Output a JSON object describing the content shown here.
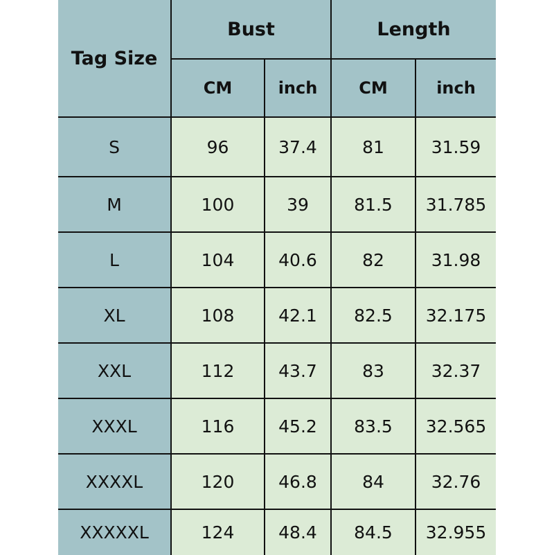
{
  "header": {
    "tag_size": "Tag Size",
    "bust": "Bust",
    "length": "Length",
    "sub": [
      "CM",
      "inch",
      "CM",
      "inch"
    ]
  },
  "rows": [
    {
      "size": "S",
      "bust_cm": "96",
      "bust_inch": "37.4",
      "length_cm": "81",
      "length_inch": "31.59"
    },
    {
      "size": "M",
      "bust_cm": "100",
      "bust_inch": "39",
      "length_cm": "81.5",
      "length_inch": "31.785"
    },
    {
      "size": "L",
      "bust_cm": "104",
      "bust_inch": "40.6",
      "length_cm": "82",
      "length_inch": "31.98"
    },
    {
      "size": "XL",
      "bust_cm": "108",
      "bust_inch": "42.1",
      "length_cm": "82.5",
      "length_inch": "32.175"
    },
    {
      "size": "XXL",
      "bust_cm": "112",
      "bust_inch": "43.7",
      "length_cm": "83",
      "length_inch": "32.37"
    },
    {
      "size": "XXXL",
      "bust_cm": "116",
      "bust_inch": "45.2",
      "length_cm": "83.5",
      "length_inch": "32.565"
    },
    {
      "size": "XXXXL",
      "bust_cm": "120",
      "bust_inch": "46.8",
      "length_cm": "84",
      "length_inch": "32.76"
    },
    {
      "size": "XXXXXL",
      "bust_cm": "124",
      "bust_inch": "48.4",
      "length_cm": "84.5",
      "length_inch": "32.955"
    }
  ],
  "colors": {
    "header_bg": "#a3c3c8",
    "cell_bg": "#dcebd6",
    "border": "#111111"
  }
}
